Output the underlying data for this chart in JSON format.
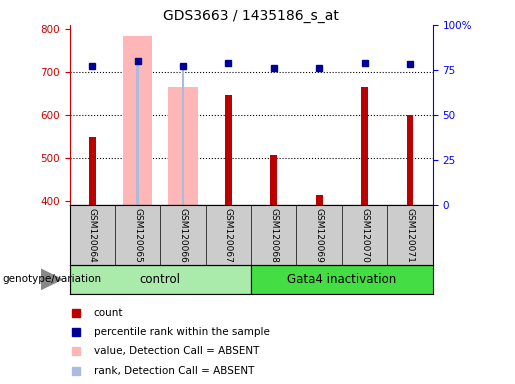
{
  "title": "GDS3663 / 1435186_s_at",
  "samples": [
    "GSM120064",
    "GSM120065",
    "GSM120066",
    "GSM120067",
    "GSM120068",
    "GSM120069",
    "GSM120070",
    "GSM120071"
  ],
  "count_values": [
    550,
    null,
    null,
    648,
    507,
    415,
    665,
    600
  ],
  "percentile_rank": [
    715,
    725,
    715,
    722,
    710,
    710,
    722,
    718
  ],
  "absent_value": [
    null,
    785,
    665,
    null,
    null,
    null,
    null,
    null
  ],
  "absent_rank": [
    null,
    727,
    713,
    null,
    null,
    null,
    null,
    null
  ],
  "ylim_left": [
    390,
    810
  ],
  "ylim_right": [
    0,
    100
  ],
  "y_ticks_left": [
    400,
    500,
    600,
    700,
    800
  ],
  "y_ticks_right": [
    0,
    25,
    50,
    75,
    100
  ],
  "count_color": "#bb0000",
  "percentile_color": "#000099",
  "absent_value_color": "#ffb6b6",
  "absent_rank_color": "#aabbdd",
  "control_color": "#aaeaaa",
  "gata4_color": "#44dd44",
  "sample_bg_color": "#cccccc",
  "legend_items": [
    {
      "label": "count",
      "color": "#bb0000"
    },
    {
      "label": "percentile rank within the sample",
      "color": "#000099"
    },
    {
      "label": "value, Detection Call = ABSENT",
      "color": "#ffb6b6"
    },
    {
      "label": "rank, Detection Call = ABSENT",
      "color": "#aabbdd"
    }
  ],
  "genotype_label": "genotype/variation"
}
